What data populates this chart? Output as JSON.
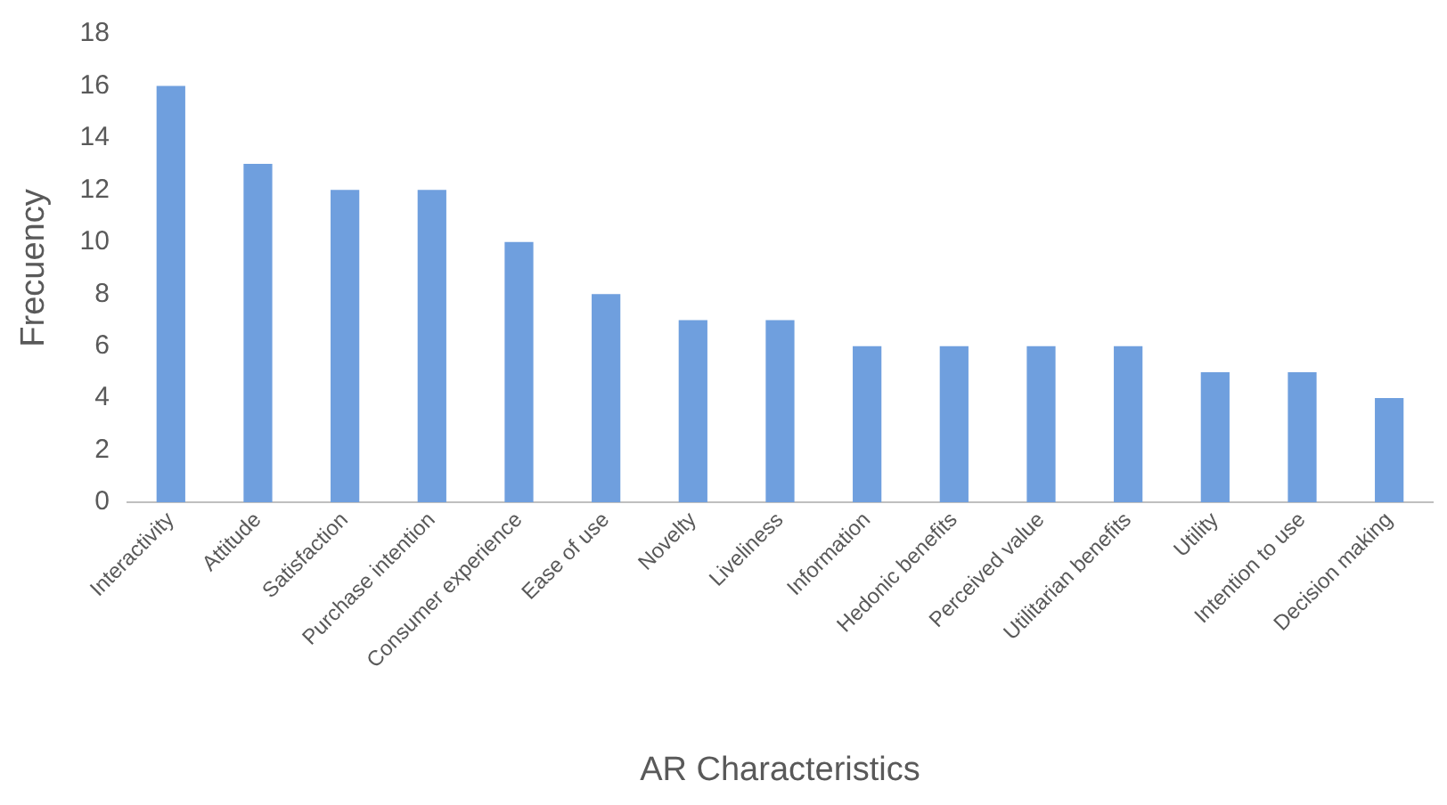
{
  "chart_data": {
    "type": "bar",
    "xlabel": "AR Characteristics",
    "ylabel": "Frecuency",
    "categories": [
      "Interactivity",
      "Attitude",
      "Satisfaction",
      "Purchase intention",
      "Consumer experience",
      "Ease of use",
      "Novelty",
      "Liveliness",
      "Information",
      "Hedonic benefits",
      "Perceived value",
      "Utilitarian benefits",
      "Utility",
      "Intention to use",
      "Decision making"
    ],
    "values": [
      16,
      13,
      12,
      12,
      10,
      8,
      7,
      7,
      6,
      6,
      6,
      6,
      5,
      5,
      4
    ],
    "color": "#6f9fde",
    "ylim": [
      0,
      18
    ],
    "yticks": [
      0,
      2,
      4,
      6,
      8,
      10,
      12,
      14,
      16,
      18
    ],
    "grid": false,
    "legend": false
  }
}
